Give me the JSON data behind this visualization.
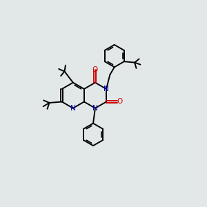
{
  "bg_color": "#e2e8e8",
  "bond_color": "#000000",
  "n_color": "#0000cc",
  "o_color": "#cc0000",
  "lw": 1.4,
  "lw_inner": 1.2,
  "fig_width": 3.0,
  "fig_height": 3.0,
  "xlim": [
    0,
    10
  ],
  "ylim": [
    0,
    10
  ]
}
